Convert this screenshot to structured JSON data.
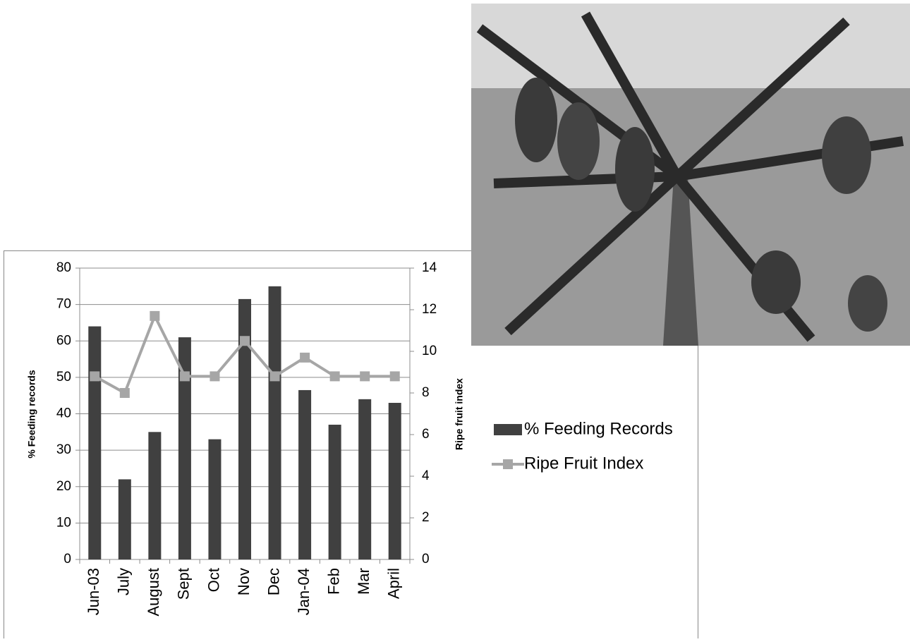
{
  "chart_data": {
    "type": "bar_line",
    "categories": [
      "Jun-03",
      "July",
      "August",
      "Sept",
      "Oct",
      "Nov",
      "Dec",
      "Jan-04",
      "Feb",
      "Mar",
      "April"
    ],
    "y_label": "% Feeding records",
    "y2_label": "Ripe fruit index",
    "series": [
      {
        "name": "% Feeding Records",
        "type": "bar",
        "color": "#404040",
        "values": [
          64,
          22,
          35,
          61,
          33,
          71.5,
          75,
          46.5,
          37,
          44,
          43
        ]
      },
      {
        "name": "Ripe Fruit Index",
        "type": "line",
        "axis": "y2",
        "color": "#a6a6a6",
        "values": [
          8.8,
          8,
          11.7,
          8.8,
          8.8,
          10.5,
          8.8,
          9.7,
          8.8,
          8.8,
          8.8
        ]
      }
    ],
    "ylim": [
      0,
      80
    ],
    "yticks": [
      0,
      10,
      20,
      30,
      40,
      50,
      60,
      70,
      80
    ],
    "y2lim": [
      0,
      14
    ],
    "y2ticks": [
      0,
      2,
      4,
      6,
      8,
      10,
      12,
      14
    ],
    "grid": true
  }
}
